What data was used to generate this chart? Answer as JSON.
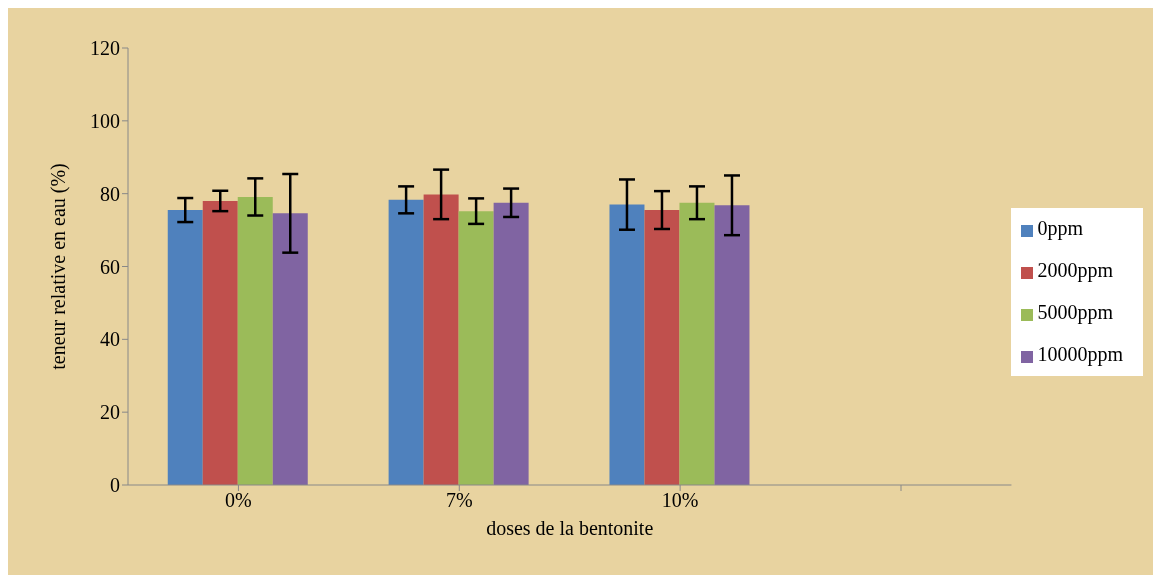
{
  "chart_data": {
    "type": "bar",
    "xlabel": "doses de la bentonite",
    "ylabel": "teneur relative  en eau (%)",
    "categories": [
      "0%",
      "7%",
      "10%",
      null
    ],
    "series": [
      {
        "name": "0ppm",
        "color": "#4f81bd",
        "values": [
          75.5,
          78.3,
          77.0,
          null
        ],
        "errors": [
          3.3,
          3.7,
          6.9,
          null
        ]
      },
      {
        "name": "2000ppm",
        "color": "#c0504d",
        "values": [
          78.0,
          79.8,
          75.5,
          null
        ],
        "errors": [
          2.8,
          6.8,
          5.2,
          null
        ]
      },
      {
        "name": "5000ppm",
        "color": "#9bbb59",
        "values": [
          79.1,
          75.2,
          77.5,
          null
        ],
        "errors": [
          5.1,
          3.5,
          4.5,
          null
        ]
      },
      {
        "name": "10000ppm",
        "color": "#8064a2",
        "values": [
          74.6,
          77.5,
          76.8,
          null
        ],
        "errors": [
          10.8,
          3.9,
          8.2,
          null
        ]
      }
    ],
    "ylim": [
      0,
      120
    ],
    "yticks": [
      0,
      20,
      40,
      60,
      80,
      100,
      120
    ],
    "grid": false,
    "legend": "right"
  }
}
